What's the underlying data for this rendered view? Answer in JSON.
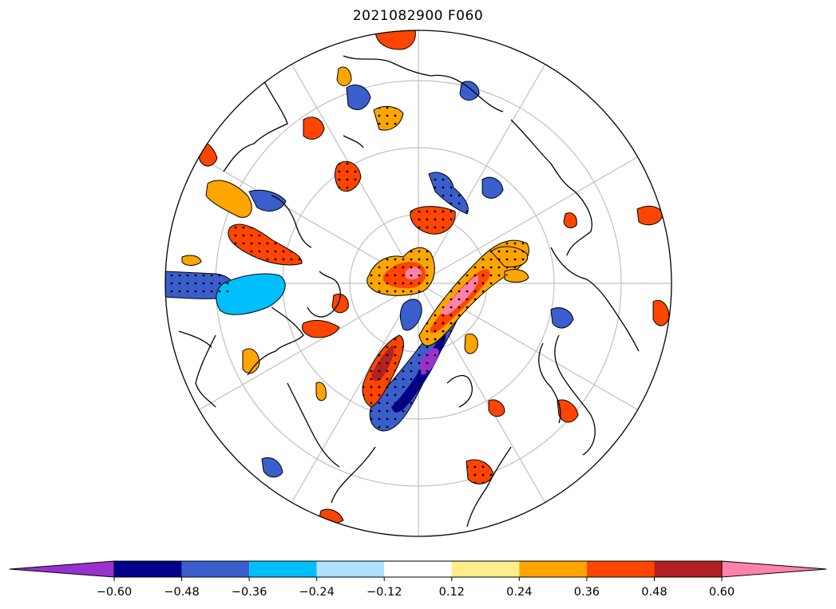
{
  "title": "2021082900 F060",
  "colorbar": {
    "ticks": [
      "−0.60",
      "−0.48",
      "−0.36",
      "−0.24",
      "−0.12",
      "0.12",
      "0.24",
      "0.36",
      "0.48",
      "0.60"
    ],
    "colors": [
      "#9932cc",
      "#00008b",
      "#3a5fcd",
      "#00bfff",
      "#b0e2ff",
      "#ffffff",
      "#ffec8b",
      "#ffa500",
      "#ff4500",
      "#b22222",
      "#ff82ab"
    ],
    "extend": "both"
  },
  "map": {
    "projection": "north-polar-stereographic",
    "graticule": true,
    "stippling": "significance dots",
    "contour_color": "#000000"
  }
}
